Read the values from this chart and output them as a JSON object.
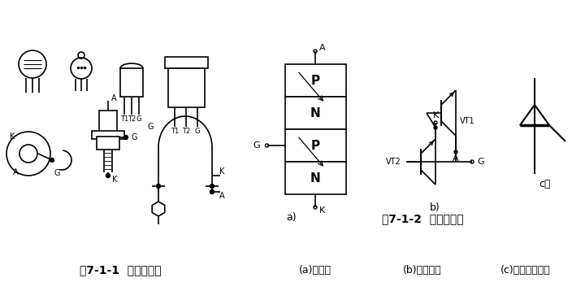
{
  "bg_color": "#ffffff",
  "fig_width": 7.2,
  "fig_height": 3.74,
  "dpi": 100,
  "title1": "图7-1-1  晶闸管外形",
  "title2": "图7-1-2  普通晶闸管",
  "subtitle_a": "(a)结构图",
  "subtitle_b": "(b)等效电路",
  "subtitle_c": "(c)电路图形符号",
  "label_a": "a)",
  "label_b": "b)",
  "label_c": "c）",
  "layer_P1": "P",
  "layer_N1": "N",
  "layer_P2": "P",
  "layer_N2": "N",
  "line_color": "#000000",
  "line_width": 1.2
}
